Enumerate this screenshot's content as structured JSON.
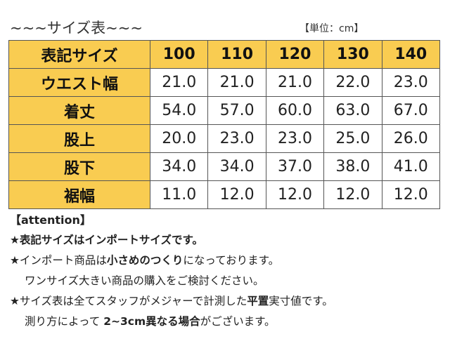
{
  "title": "~~~サイズ表~~~",
  "unit": "【単位：cm】",
  "table": {
    "header": [
      "表記サイズ",
      "100",
      "110",
      "120",
      "130",
      "140"
    ],
    "rows": [
      {
        "label": "ウエスト幅",
        "values": [
          "21.0",
          "21.0",
          "21.0",
          "22.0",
          "23.0"
        ]
      },
      {
        "label": "着丈",
        "values": [
          "54.0",
          "57.0",
          "60.0",
          "63.0",
          "67.0"
        ]
      },
      {
        "label": "股上",
        "values": [
          "20.0",
          "23.0",
          "23.0",
          "25.0",
          "26.0"
        ]
      },
      {
        "label": "股下",
        "values": [
          "34.0",
          "34.0",
          "37.0",
          "38.0",
          "41.0"
        ]
      },
      {
        "label": "裾幅",
        "values": [
          "11.0",
          "12.0",
          "12.0",
          "12.0",
          "12.0"
        ]
      }
    ]
  },
  "notes": {
    "heading": "【attention】",
    "line1": "★表記サイズはインポートサイズです。",
    "line2_a": "★インポート商品は",
    "line2_b": "小さめのつくり",
    "line2_c": "になっております。",
    "line3": "ワンサイズ大きい商品の購入をご検討ください。",
    "line4_a": "★サイズ表は全てスタッフがメジャーで計測した",
    "line4_b": "平置",
    "line4_c": "実寸値です。",
    "line5_a": "測り方によって ",
    "line5_b": "2~3cm異なる場合",
    "line5_c": "がございます。"
  }
}
